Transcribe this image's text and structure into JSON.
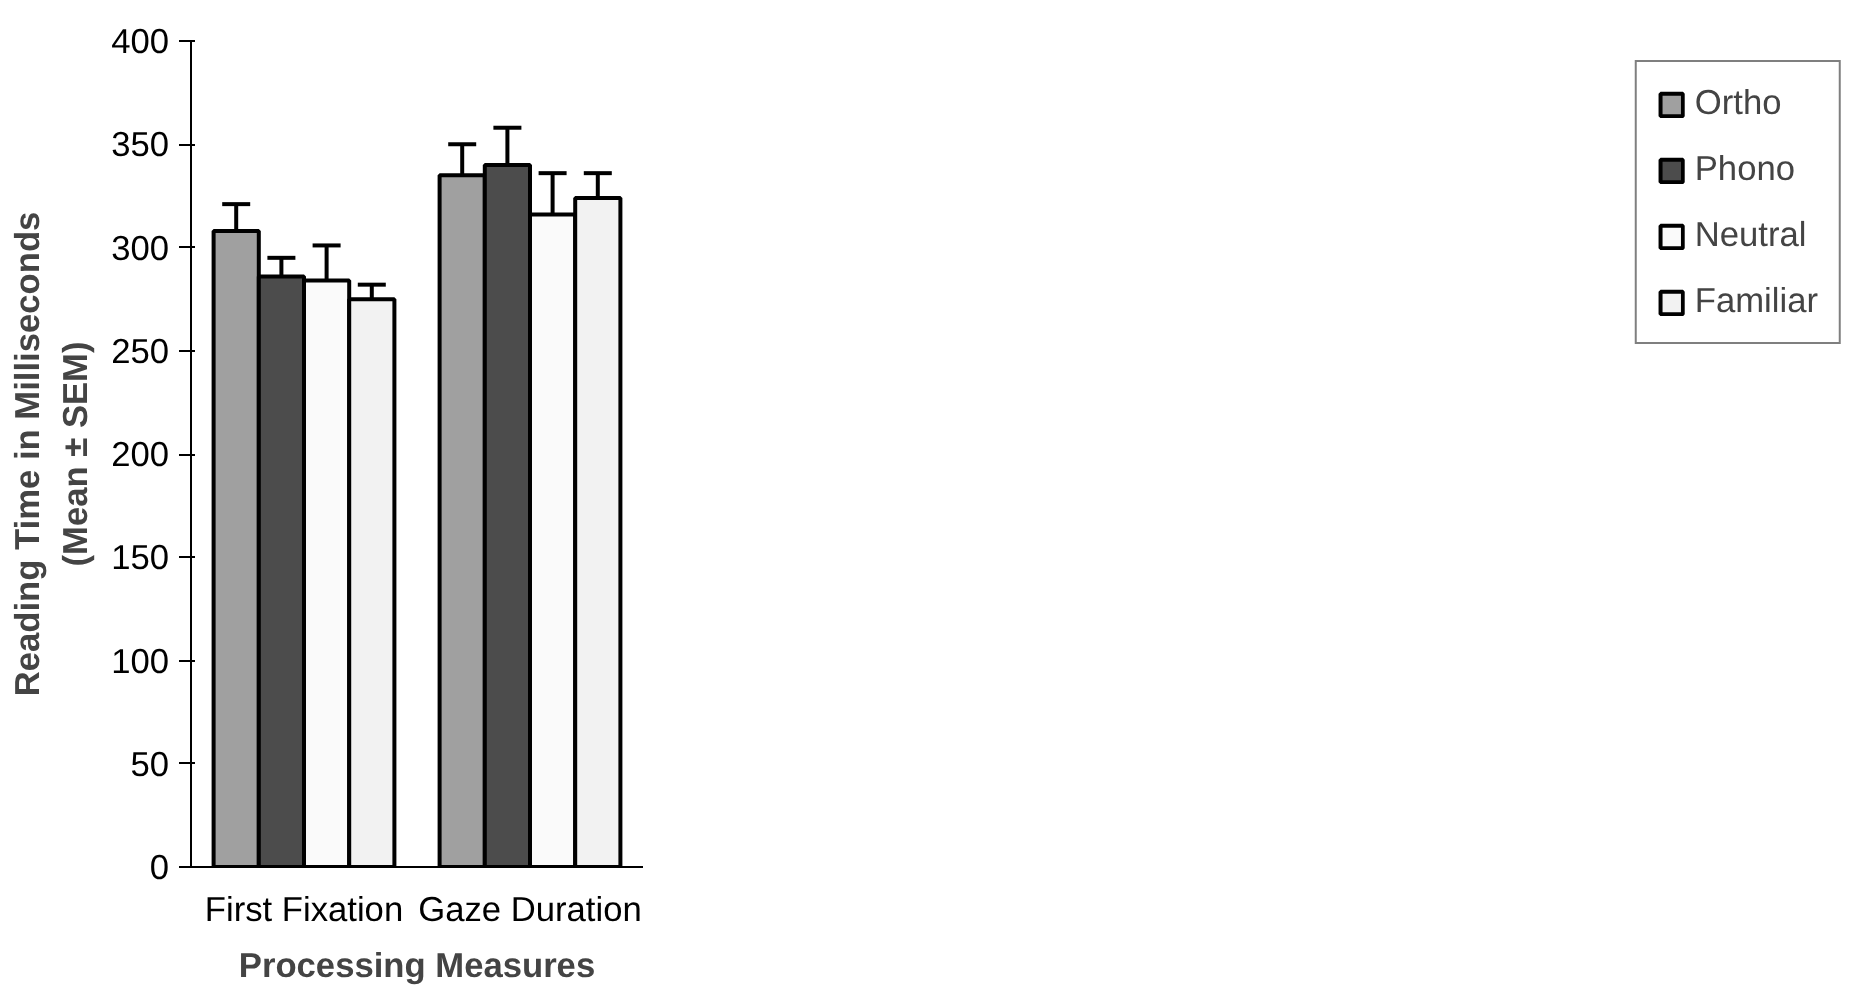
{
  "chart_data": {
    "type": "bar",
    "xlabel": "Processing Measures",
    "ylabel": "Reading Time in Milliseconds\n(Mean ± SEM)",
    "categories": [
      "First Fixation",
      "Gaze Duration"
    ],
    "series": [
      {
        "name": "Ortho",
        "color": "#a0a0a0",
        "values": [
          308,
          335
        ],
        "errors": [
          13,
          15
        ]
      },
      {
        "name": "Phono",
        "color": "#4c4c4c",
        "values": [
          286,
          340
        ],
        "errors": [
          9,
          18
        ]
      },
      {
        "name": "Neutral",
        "color": "#fafafa",
        "values": [
          284,
          316
        ],
        "errors": [
          17,
          20
        ]
      },
      {
        "name": "Familiar",
        "color": "#f2f2f2",
        "values": [
          275,
          324
        ],
        "errors": [
          7,
          12
        ]
      }
    ],
    "ylim": [
      0,
      400
    ],
    "yticks": [
      0,
      50,
      100,
      150,
      200,
      250,
      300,
      350,
      400
    ],
    "grid": false,
    "legend": "right"
  }
}
